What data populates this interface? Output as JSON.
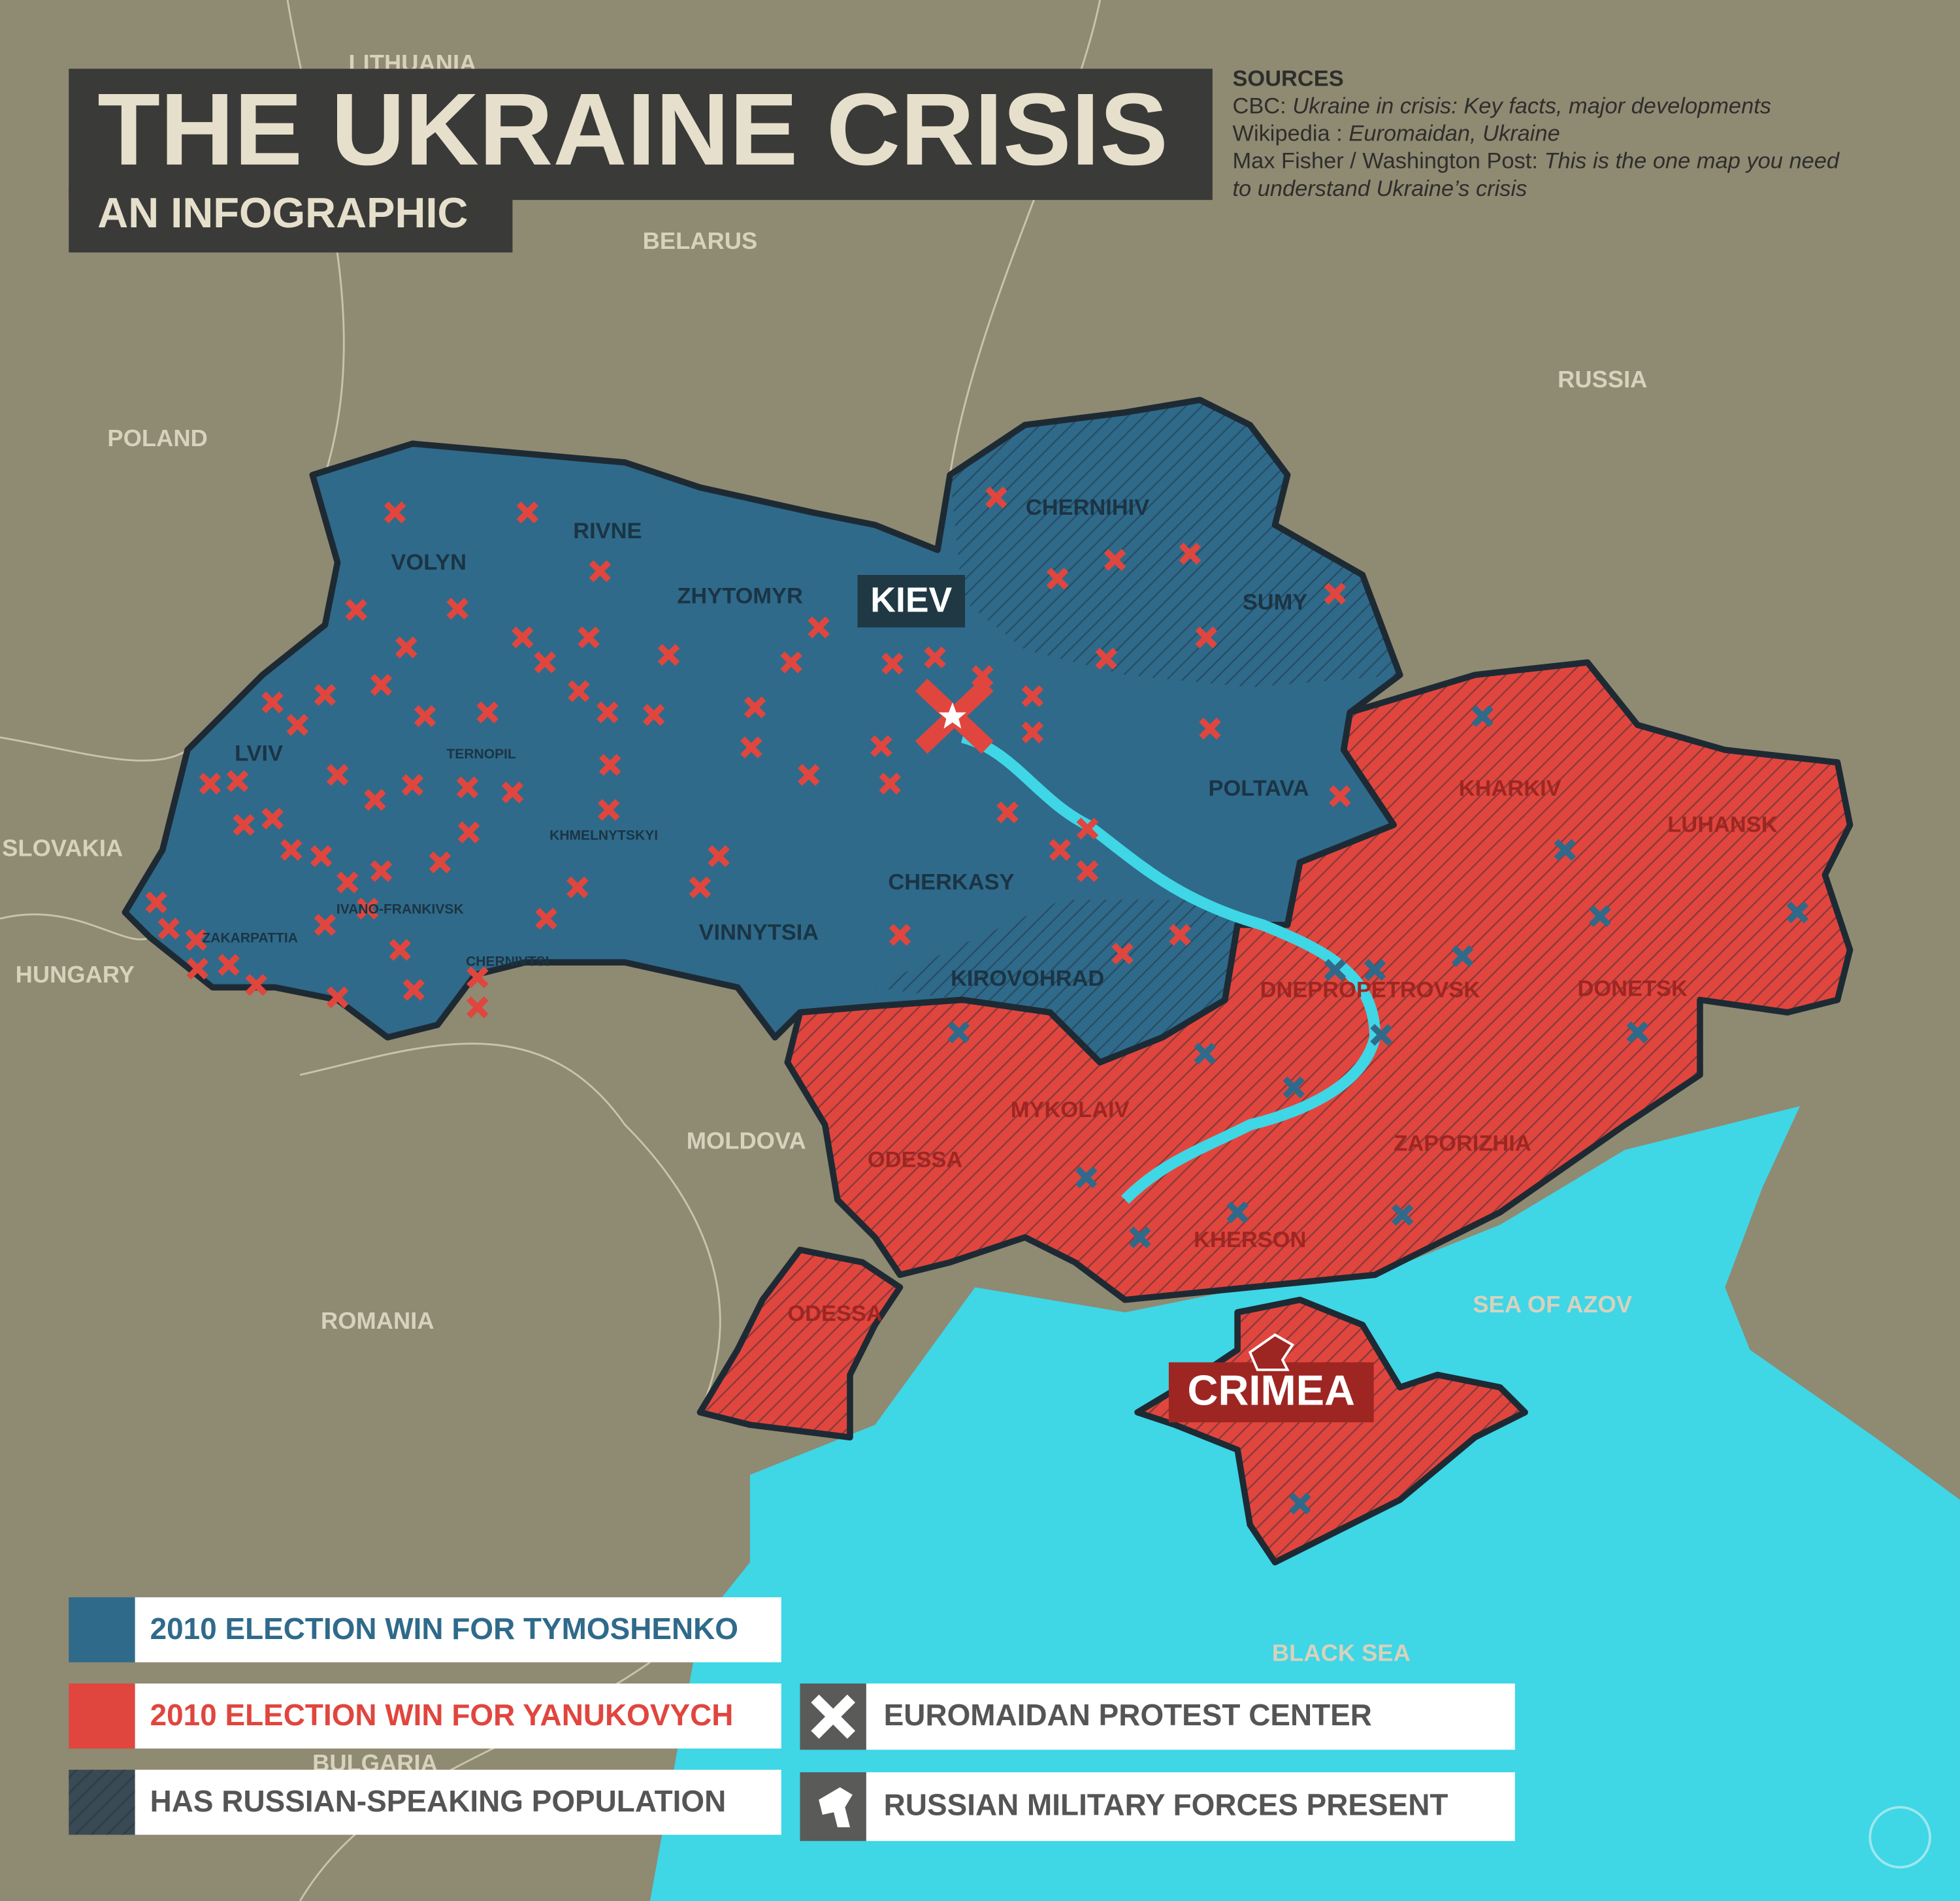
{
  "title": "THE UKRAINE CRISIS",
  "subtitle": "AN INFOGRAPHIC",
  "sources": {
    "heading": "SOURCES",
    "items": [
      {
        "source": "CBC:",
        "title": [
          "Ukraine in crisis: Key facts, major developments"
        ]
      },
      {
        "source": "Wikipedia :",
        "title": [
          "Euromaidan,  Ukraine"
        ]
      },
      {
        "source": "Max Fisher / Washington Post:",
        "title": [
          "This is the one map you need",
          "to understand Ukraine’s crisis"
        ]
      }
    ]
  },
  "countries": [
    "LITHUANIA",
    "BELARUS",
    "RUSSIA",
    "POLAND",
    "SLOVAKIA",
    "HUNGARY",
    "MOLDOVA",
    "ROMANIA",
    "BULGARIA"
  ],
  "seas": [
    "SEA OF AZOV",
    "BLACK SEA"
  ],
  "regions": [
    "VOLYN",
    "RIVNE",
    "ZHYTOMYR",
    "CHERNIHIV",
    "SUMY",
    "LVIV",
    "TERNOPIL",
    "KHMELNYTSKYI",
    "IVANO-FRANKIVSK",
    "ZAKARPATTIA",
    "CHERNIVTSI",
    "VINNYTSIA",
    "CHERKASY",
    "POLTAVA",
    "KIROVOHRAD",
    "KHARKIV",
    "LUHANSK",
    "DONETSK",
    "DNEPROPETROVSK",
    "ODESSA",
    "MYKOLAIV",
    "ZAPORIZHIA",
    "KHERSON",
    "ODESSA"
  ],
  "city": "KIEV",
  "crimea": "CRIMEA",
  "legend": [
    "2010 ELECTION WIN FOR TYMOSHENKO",
    "2010 ELECTION WIN FOR YANUKOVYCH",
    "HAS RUSSIAN-SPEAKING POPULATION",
    "EUROMAIDAN PROTEST CENTER",
    "RUSSIAN MILITARY FORCES PRESENT"
  ]
}
